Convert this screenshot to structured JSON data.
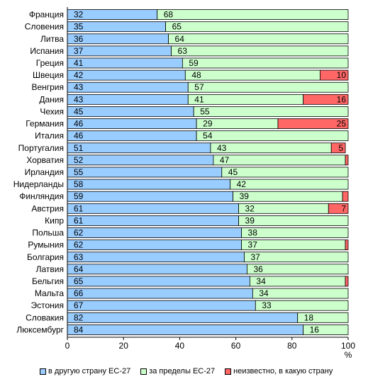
{
  "chart_data": {
    "type": "bar",
    "orientation": "horizontal",
    "stacked": true,
    "categories": [
      "Франция",
      "Словения",
      "Литва",
      "Испания",
      "Греция",
      "Швеция",
      "Венгрия",
      "Дания",
      "Чехия",
      "Германия",
      "Италия",
      "Португалия",
      "Хорватия",
      "Ирландия",
      "Нидерланды",
      "Финляндия",
      "Австрия",
      "Кипр",
      "Польша",
      "Румыния",
      "Болгария",
      "Латвия",
      "Бельгия",
      "Мальта",
      "Эстония",
      "Словакия",
      "Люксембург"
    ],
    "series": [
      {
        "name": "в другую страну ЕС-27",
        "color": "#99ccff",
        "values": [
          32,
          35,
          36,
          37,
          41,
          42,
          43,
          43,
          45,
          46,
          46,
          51,
          52,
          55,
          58,
          59,
          61,
          61,
          62,
          62,
          63,
          64,
          65,
          66,
          67,
          82,
          84
        ],
        "labels": [
          "32",
          "35",
          "36",
          "37",
          "41",
          "42",
          "43",
          "43",
          "45",
          "46",
          "46",
          "51",
          "52",
          "55",
          "58",
          "59",
          "61",
          "61",
          "62",
          "62",
          "63",
          "64",
          "65",
          "66",
          "67",
          "82",
          "84"
        ]
      },
      {
        "name": "за пределы ЕС-27",
        "color": "#ccffcc",
        "values": [
          68,
          65,
          64,
          63,
          59,
          48,
          57,
          41,
          55,
          29,
          54,
          43,
          47,
          45,
          42,
          39,
          32,
          39,
          38,
          37,
          37,
          36,
          34,
          34,
          33,
          18,
          16
        ],
        "labels": [
          "68",
          "65",
          "64",
          "63",
          "59",
          "48",
          "57",
          "41",
          "55",
          "29",
          "54",
          "43",
          "47",
          "45",
          "42",
          "39",
          "32",
          "39",
          "38",
          "37",
          "37",
          "36",
          "34",
          "34",
          "33",
          "18",
          "16"
        ]
      },
      {
        "name": "неизвестно, в какую страну",
        "color": "#ff6666",
        "values": [
          0,
          0,
          0,
          0,
          0,
          10,
          0,
          16,
          0,
          25,
          0,
          5,
          1,
          0,
          0,
          2,
          7,
          0,
          0,
          1,
          0,
          0,
          1,
          0,
          0,
          0,
          0
        ],
        "labels": [
          "",
          "",
          "",
          "",
          "",
          "10",
          "",
          "16",
          "",
          "25",
          "",
          "5",
          "",
          "",
          "",
          "",
          "7",
          "",
          "",
          "",
          "",
          "",
          "",
          "",
          "",
          "",
          ""
        ]
      }
    ],
    "xlim": [
      0,
      100
    ],
    "xticks": [
      "0",
      "20",
      "40",
      "60",
      "80",
      "100"
    ],
    "xunit": "%",
    "legend_position": "bottom"
  }
}
